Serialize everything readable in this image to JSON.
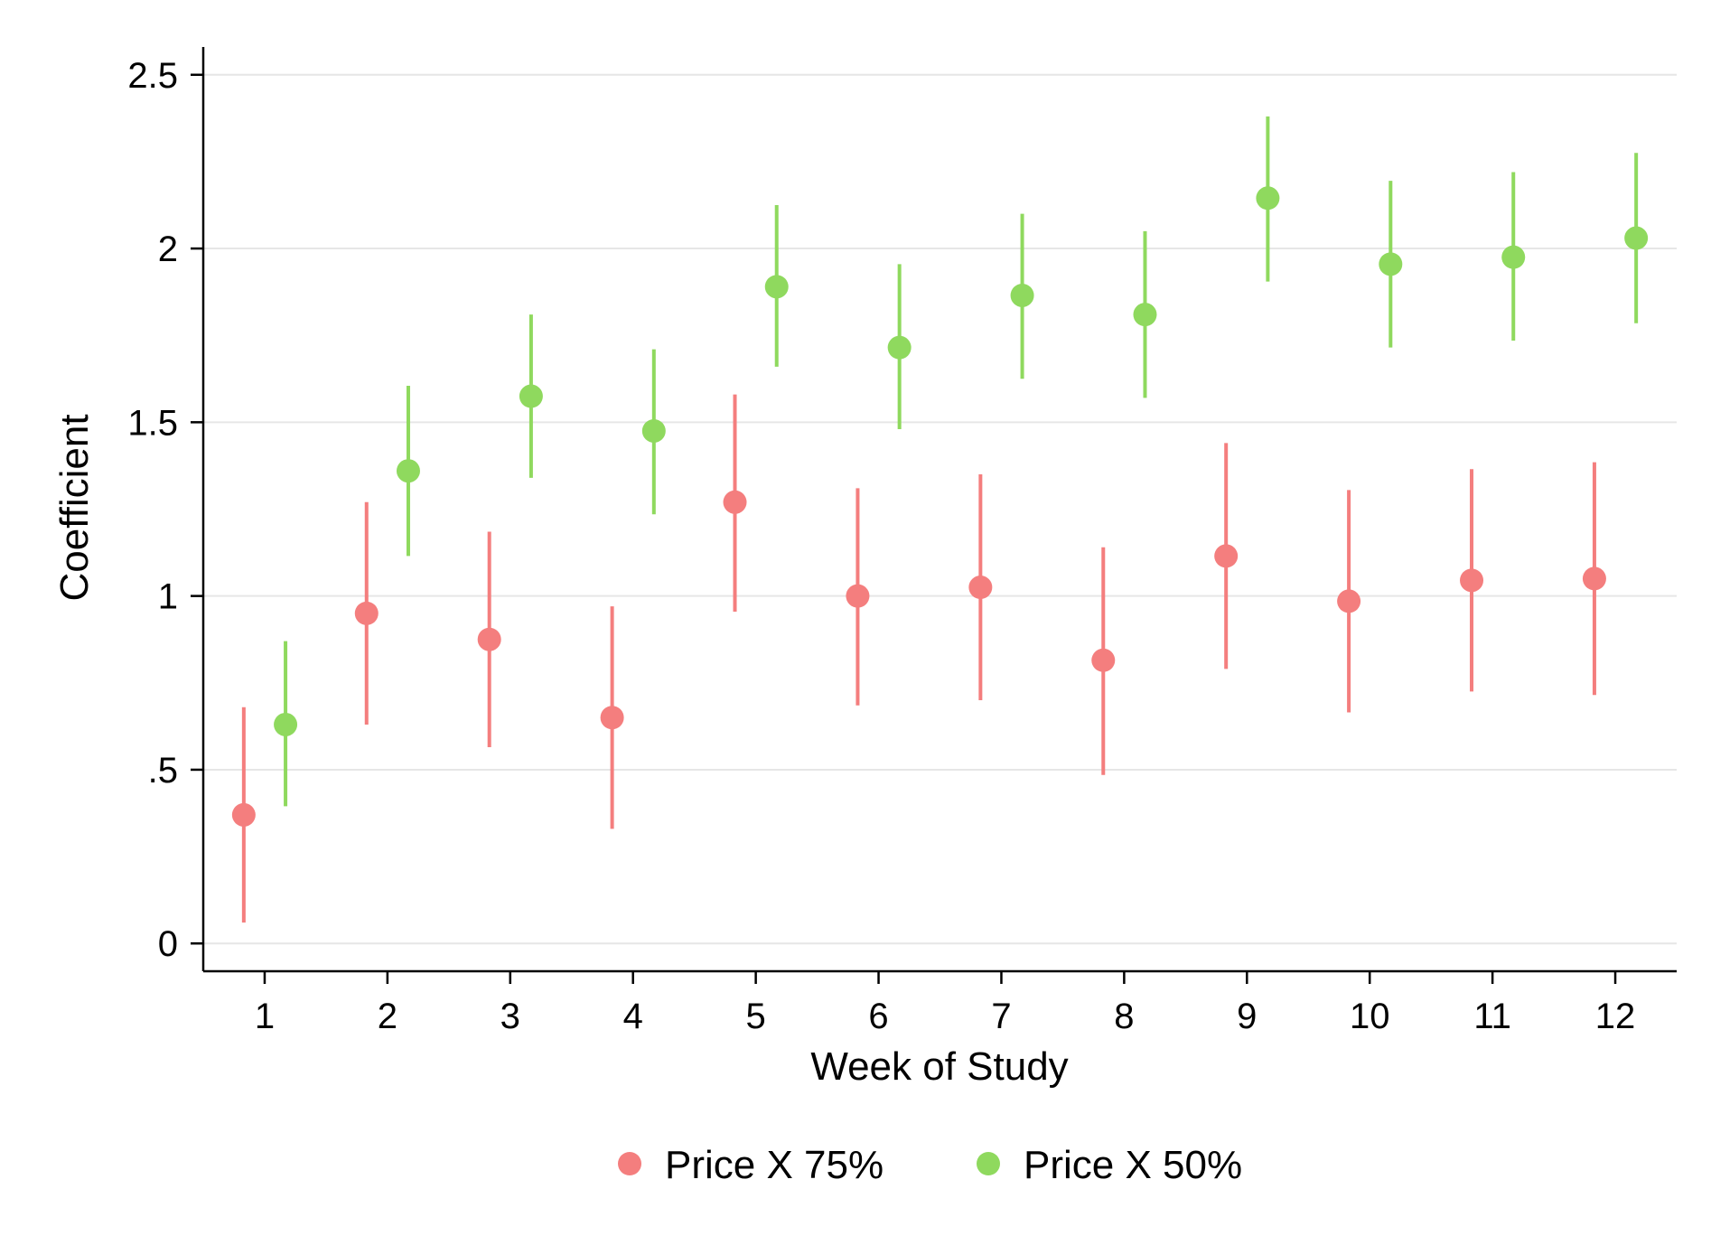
{
  "chart_data": {
    "type": "scatter",
    "title": "",
    "xlabel": "Week of Study",
    "ylabel": "Coefficient",
    "x_ticks": [
      "1",
      "2",
      "3",
      "4",
      "5",
      "6",
      "7",
      "8",
      "9",
      "10",
      "11",
      "12"
    ],
    "y_ticks": [
      {
        "value": 0,
        "label": "0"
      },
      {
        "value": 0.5,
        "label": ".5"
      },
      {
        "value": 1,
        "label": "1"
      },
      {
        "value": 1.5,
        "label": "1.5"
      },
      {
        "value": 2,
        "label": "2"
      },
      {
        "value": 2.5,
        "label": "2.5"
      }
    ],
    "ylim": [
      -0.08,
      2.58
    ],
    "xlim": [
      0.5,
      12.5
    ],
    "grid": "horizontal",
    "legend_position": "bottom",
    "error_bars": true,
    "series": [
      {
        "name": "Price X 75%",
        "color": "#f47e7e",
        "x_offset": -0.17,
        "points": [
          {
            "x": 1,
            "y": 0.37,
            "low": 0.06,
            "high": 0.68
          },
          {
            "x": 2,
            "y": 0.95,
            "low": 0.63,
            "high": 1.27
          },
          {
            "x": 3,
            "y": 0.875,
            "low": 0.565,
            "high": 1.185
          },
          {
            "x": 4,
            "y": 0.65,
            "low": 0.33,
            "high": 0.97
          },
          {
            "x": 5,
            "y": 1.27,
            "low": 0.955,
            "high": 1.58
          },
          {
            "x": 6,
            "y": 1.0,
            "low": 0.685,
            "high": 1.31
          },
          {
            "x": 7,
            "y": 1.025,
            "low": 0.7,
            "high": 1.35
          },
          {
            "x": 8,
            "y": 0.815,
            "low": 0.485,
            "high": 1.14
          },
          {
            "x": 9,
            "y": 1.115,
            "low": 0.79,
            "high": 1.44
          },
          {
            "x": 10,
            "y": 0.985,
            "low": 0.665,
            "high": 1.305
          },
          {
            "x": 11,
            "y": 1.045,
            "low": 0.725,
            "high": 1.365
          },
          {
            "x": 12,
            "y": 1.05,
            "low": 0.715,
            "high": 1.385
          }
        ]
      },
      {
        "name": "Price X 50%",
        "color": "#8fd95e",
        "x_offset": 0.17,
        "points": [
          {
            "x": 1,
            "y": 0.63,
            "low": 0.395,
            "high": 0.87
          },
          {
            "x": 2,
            "y": 1.36,
            "low": 1.115,
            "high": 1.605
          },
          {
            "x": 3,
            "y": 1.575,
            "low": 1.34,
            "high": 1.81
          },
          {
            "x": 4,
            "y": 1.475,
            "low": 1.235,
            "high": 1.71
          },
          {
            "x": 5,
            "y": 1.89,
            "low": 1.66,
            "high": 2.125
          },
          {
            "x": 6,
            "y": 1.715,
            "low": 1.48,
            "high": 1.955
          },
          {
            "x": 7,
            "y": 1.865,
            "low": 1.625,
            "high": 2.1
          },
          {
            "x": 8,
            "y": 1.81,
            "low": 1.57,
            "high": 2.05
          },
          {
            "x": 9,
            "y": 2.145,
            "low": 1.905,
            "high": 2.38
          },
          {
            "x": 10,
            "y": 1.955,
            "low": 1.715,
            "high": 2.195
          },
          {
            "x": 11,
            "y": 1.975,
            "low": 1.735,
            "high": 2.22
          },
          {
            "x": 12,
            "y": 2.03,
            "low": 1.785,
            "high": 2.275
          }
        ]
      }
    ]
  }
}
